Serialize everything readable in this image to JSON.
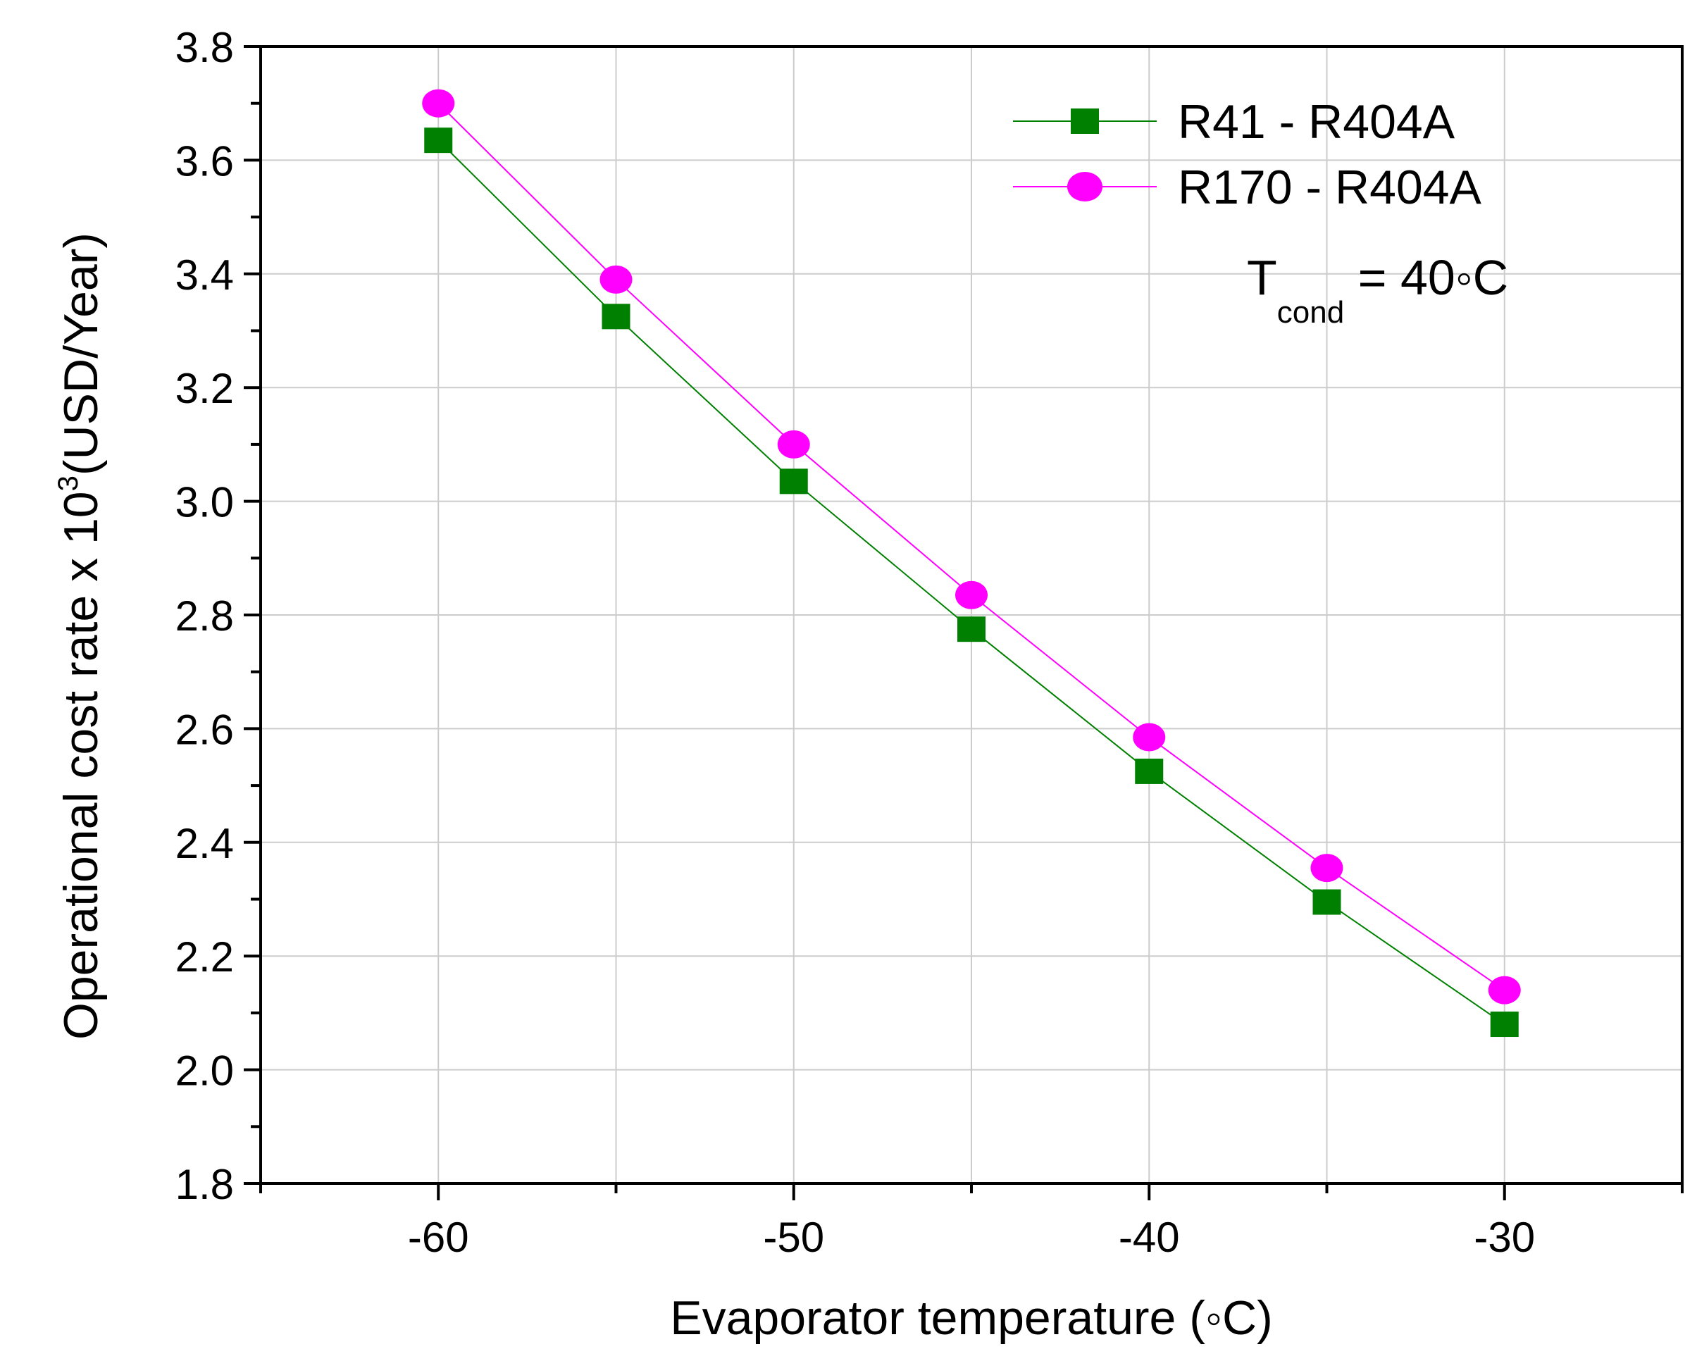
{
  "chart_data": {
    "type": "line",
    "title": "",
    "xlabel": "Evaporator temperature (◦C)",
    "ylabel_main": "Operational cost rate x 10",
    "ylabel_sup": "3",
    "ylabel_tail": "(USD/Year)",
    "xlim": [
      -65,
      -25
    ],
    "ylim": [
      1.8,
      3.8
    ],
    "x_ticks": [
      "-60",
      "-50",
      "-40",
      "-30"
    ],
    "y_ticks": [
      "1.8",
      "2.0",
      "2.2",
      "2.4",
      "2.6",
      "2.8",
      "3.0",
      "3.2",
      "3.4",
      "3.6",
      "3.8"
    ],
    "grid": true,
    "legend_position": "top-right",
    "x": [
      -60,
      -55,
      -50,
      -45,
      -40,
      -35,
      -30
    ],
    "series": [
      {
        "name": "R41 - R404A",
        "marker": "square",
        "color": "#008000",
        "values": [
          3.635,
          3.325,
          3.035,
          2.775,
          2.525,
          2.295,
          2.08
        ]
      },
      {
        "name": "R170 - R404A",
        "marker": "circle",
        "color": "#ff00ff",
        "values": [
          3.7,
          3.39,
          3.1,
          2.835,
          2.585,
          2.355,
          2.14
        ]
      }
    ],
    "annotation": {
      "prefix": "T",
      "subscript": "cond",
      "suffix": " = 40◦C"
    }
  }
}
